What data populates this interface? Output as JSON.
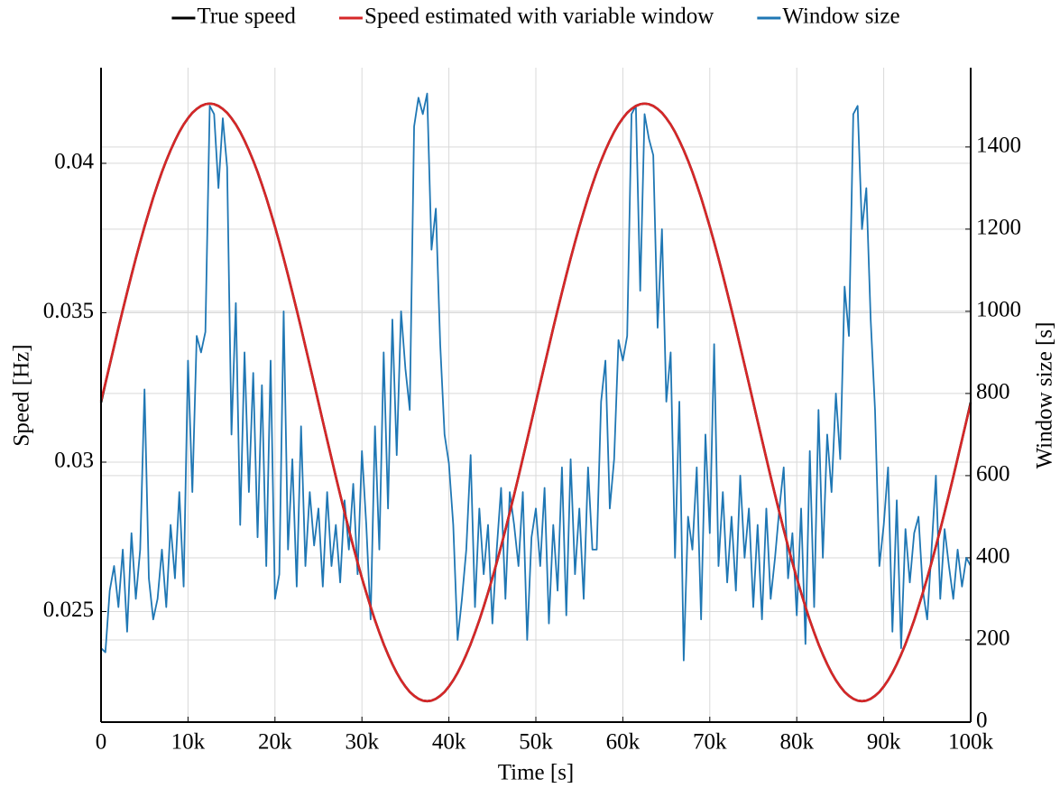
{
  "chart_data": {
    "type": "line",
    "xlabel": "Time [s]",
    "ylabel": "Speed [Hz]",
    "y2label": "Window size [s]",
    "xlim": [
      0,
      100000
    ],
    "ylim": [
      0.0213,
      0.0432
    ],
    "y2lim": [
      0,
      1593
    ],
    "xticks": [
      0,
      {
        "value": 10000,
        "label": "10k"
      },
      {
        "value": 20000,
        "label": "20k"
      },
      {
        "value": 30000,
        "label": "30k"
      },
      {
        "value": 40000,
        "label": "40k"
      },
      {
        "value": 50000,
        "label": "50k"
      },
      {
        "value": 60000,
        "label": "60k"
      },
      {
        "value": 70000,
        "label": "70k"
      },
      {
        "value": 80000,
        "label": "80k"
      },
      {
        "value": 90000,
        "label": "90k"
      },
      {
        "value": 100000,
        "label": "100k"
      }
    ],
    "yticks": [
      0.025,
      0.03,
      0.035,
      0.04
    ],
    "y2ticks": [
      0,
      200,
      400,
      600,
      800,
      1000,
      1200,
      1400
    ],
    "grid": true,
    "legend": "top",
    "y2label_color": "#3b4a6b",
    "x": [
      0,
      500,
      1000,
      1500,
      2000,
      2500,
      3000,
      3500,
      4000,
      4500,
      5000,
      5500,
      6000,
      6500,
      7000,
      7500,
      8000,
      8500,
      9000,
      9500,
      10000,
      10500,
      11000,
      11500,
      12000,
      12500,
      13000,
      13500,
      14000,
      14500,
      15000,
      15500,
      16000,
      16500,
      17000,
      17500,
      18000,
      18500,
      19000,
      19500,
      20000,
      20500,
      21000,
      21500,
      22000,
      22500,
      23000,
      23500,
      24000,
      24500,
      25000,
      25500,
      26000,
      26500,
      27000,
      27500,
      28000,
      28500,
      29000,
      29500,
      30000,
      30500,
      31000,
      31500,
      32000,
      32500,
      33000,
      33500,
      34000,
      34500,
      35000,
      35500,
      36000,
      36500,
      37000,
      37500,
      38000,
      38500,
      39000,
      39500,
      40000,
      40500,
      41000,
      41500,
      42000,
      42500,
      43000,
      43500,
      44000,
      44500,
      45000,
      45500,
      46000,
      46500,
      47000,
      47500,
      48000,
      48500,
      49000,
      49500,
      50000,
      50500,
      51000,
      51500,
      52000,
      52500,
      53000,
      53500,
      54000,
      54500,
      55000,
      55500,
      56000,
      56500,
      57000,
      57500,
      58000,
      58500,
      59000,
      59500,
      60000,
      60500,
      61000,
      61500,
      62000,
      62500,
      63000,
      63500,
      64000,
      64500,
      65000,
      65500,
      66000,
      66500,
      67000,
      67500,
      68000,
      68500,
      69000,
      69500,
      70000,
      70500,
      71000,
      71500,
      72000,
      72500,
      73000,
      73500,
      74000,
      74500,
      75000,
      75500,
      76000,
      76500,
      77000,
      77500,
      78000,
      78500,
      79000,
      79500,
      80000,
      80500,
      81000,
      81500,
      82000,
      82500,
      83000,
      83500,
      84000,
      84500,
      85000,
      85500,
      86000,
      86500,
      87000,
      87500,
      88000,
      88500,
      89000,
      89500,
      90000,
      90500,
      91000,
      91500,
      92000,
      92500,
      93000,
      93500,
      94000,
      94500,
      95000,
      95500,
      96000,
      96500,
      97000,
      97500,
      98000,
      98500,
      99000,
      99500,
      100000
    ],
    "series": [
      {
        "name": "True speed",
        "color": "#000000",
        "values": [
          0.032,
          0.03263,
          0.03325,
          0.03387,
          0.03449,
          0.03509,
          0.03568,
          0.03626,
          0.03682,
          0.03736,
          0.03788,
          0.03837,
          0.03885,
          0.03929,
          0.03971,
          0.04009,
          0.04044,
          0.04076,
          0.04105,
          0.0413,
          0.04151,
          0.04169,
          0.04182,
          0.04192,
          0.04198,
          0.042,
          0.04198,
          0.04192,
          0.04182,
          0.04169,
          0.04151,
          0.0413,
          0.04105,
          0.04076,
          0.04044,
          0.04009,
          0.03971,
          0.03929,
          0.03885,
          0.03837,
          0.03788,
          0.03736,
          0.03682,
          0.03626,
          0.03568,
          0.03509,
          0.03449,
          0.03387,
          0.03325,
          0.03263,
          0.032,
          0.03137,
          0.03075,
          0.03013,
          0.02951,
          0.02891,
          0.02832,
          0.02774,
          0.02718,
          0.02664,
          0.02612,
          0.02563,
          0.02516,
          0.02471,
          0.0243,
          0.02391,
          0.02356,
          0.02324,
          0.02295,
          0.0227,
          0.02249,
          0.02231,
          0.02218,
          0.02208,
          0.02202,
          0.022,
          0.02202,
          0.02208,
          0.02218,
          0.02231,
          0.02249,
          0.0227,
          0.02295,
          0.02324,
          0.02356,
          0.02391,
          0.0243,
          0.02471,
          0.02516,
          0.02563,
          0.02612,
          0.02664,
          0.02718,
          0.02774,
          0.02832,
          0.02891,
          0.02951,
          0.03013,
          0.03075,
          0.03137,
          0.032,
          0.03263,
          0.03325,
          0.03387,
          0.03449,
          0.03509,
          0.03568,
          0.03626,
          0.03682,
          0.03736,
          0.03788,
          0.03837,
          0.03885,
          0.03929,
          0.03971,
          0.04009,
          0.04044,
          0.04076,
          0.04105,
          0.0413,
          0.04151,
          0.04169,
          0.04182,
          0.04192,
          0.04198,
          0.042,
          0.04198,
          0.04192,
          0.04182,
          0.04169,
          0.04151,
          0.0413,
          0.04105,
          0.04076,
          0.04044,
          0.04009,
          0.03971,
          0.03929,
          0.03885,
          0.03837,
          0.03788,
          0.03736,
          0.03682,
          0.03626,
          0.03568,
          0.03509,
          0.03449,
          0.03387,
          0.03325,
          0.03263,
          0.032,
          0.03137,
          0.03075,
          0.03013,
          0.02951,
          0.02891,
          0.02832,
          0.02774,
          0.02718,
          0.02664,
          0.02612,
          0.02563,
          0.02516,
          0.02471,
          0.0243,
          0.02391,
          0.02356,
          0.02324,
          0.02295,
          0.0227,
          0.02249,
          0.02231,
          0.02218,
          0.02208,
          0.02202,
          0.022,
          0.02202,
          0.02208,
          0.02218,
          0.02231,
          0.02249,
          0.0227,
          0.02295,
          0.02324,
          0.02356,
          0.02391,
          0.0243,
          0.02471,
          0.02516,
          0.02563,
          0.02612,
          0.02664,
          0.02718,
          0.02774,
          0.02832,
          0.02891,
          0.02951,
          0.03013,
          0.03075,
          0.03137,
          0.032
        ]
      },
      {
        "name": "Speed estimated with variable window",
        "color": "#d62728",
        "values": [
          0.03205,
          0.03264,
          0.03326,
          0.03388,
          0.03449,
          0.03509,
          0.03568,
          0.03625,
          0.03682,
          0.03736,
          0.03788,
          0.03837,
          0.03885,
          0.03929,
          0.03971,
          0.04009,
          0.04044,
          0.04076,
          0.04105,
          0.0413,
          0.04151,
          0.04169,
          0.04182,
          0.04192,
          0.04198,
          0.042,
          0.04198,
          0.04192,
          0.04182,
          0.04169,
          0.04151,
          0.0413,
          0.04105,
          0.04076,
          0.04044,
          0.04009,
          0.03971,
          0.03929,
          0.03885,
          0.03837,
          0.03788,
          0.03736,
          0.03682,
          0.03626,
          0.03568,
          0.03509,
          0.03449,
          0.03387,
          0.03325,
          0.03263,
          0.032,
          0.03137,
          0.03075,
          0.03013,
          0.02951,
          0.02891,
          0.02832,
          0.02774,
          0.02718,
          0.02664,
          0.02612,
          0.02563,
          0.02516,
          0.02471,
          0.0243,
          0.02391,
          0.02356,
          0.02324,
          0.02295,
          0.0227,
          0.02249,
          0.02231,
          0.02218,
          0.02208,
          0.02202,
          0.022,
          0.02202,
          0.02208,
          0.02218,
          0.02231,
          0.02249,
          0.0227,
          0.02295,
          0.02324,
          0.02356,
          0.02391,
          0.0243,
          0.02471,
          0.02516,
          0.02563,
          0.02612,
          0.02664,
          0.02718,
          0.02774,
          0.02832,
          0.02891,
          0.02951,
          0.03013,
          0.03075,
          0.03137,
          0.032,
          0.03263,
          0.03325,
          0.03387,
          0.03449,
          0.03509,
          0.03568,
          0.03626,
          0.03682,
          0.03736,
          0.03788,
          0.03837,
          0.03885,
          0.03929,
          0.03971,
          0.04009,
          0.04044,
          0.04076,
          0.04105,
          0.0413,
          0.04151,
          0.04169,
          0.04182,
          0.04192,
          0.04198,
          0.042,
          0.04198,
          0.04192,
          0.04182,
          0.04169,
          0.04151,
          0.0413,
          0.04105,
          0.04076,
          0.04044,
          0.04009,
          0.03971,
          0.03929,
          0.03885,
          0.03837,
          0.03788,
          0.03736,
          0.03682,
          0.03626,
          0.03568,
          0.03509,
          0.03449,
          0.03387,
          0.03325,
          0.03263,
          0.032,
          0.03137,
          0.03075,
          0.03013,
          0.02951,
          0.02891,
          0.02832,
          0.02774,
          0.02718,
          0.02664,
          0.02612,
          0.02563,
          0.02516,
          0.02471,
          0.0243,
          0.02391,
          0.02356,
          0.02324,
          0.02295,
          0.0227,
          0.02249,
          0.02231,
          0.02218,
          0.02208,
          0.02202,
          0.022,
          0.02202,
          0.02208,
          0.02218,
          0.02231,
          0.02249,
          0.0227,
          0.02295,
          0.02324,
          0.02356,
          0.02391,
          0.0243,
          0.02471,
          0.02516,
          0.02563,
          0.02612,
          0.02664,
          0.02718,
          0.02774,
          0.02832,
          0.02891,
          0.02951,
          0.03013,
          0.03075,
          0.03137,
          0.03195
        ]
      },
      {
        "name": "Window size",
        "color": "#1f77b4",
        "axis": "y2",
        "values": [
          180,
          170,
          320,
          380,
          280,
          420,
          220,
          460,
          300,
          420,
          810,
          350,
          250,
          300,
          420,
          280,
          480,
          350,
          560,
          330,
          880,
          560,
          940,
          900,
          950,
          1500,
          1480,
          1300,
          1470,
          1350,
          700,
          1020,
          480,
          900,
          560,
          850,
          450,
          820,
          380,
          880,
          300,
          360,
          1000,
          420,
          640,
          330,
          720,
          380,
          560,
          430,
          520,
          330,
          560,
          380,
          480,
          340,
          540,
          420,
          580,
          360,
          660,
          480,
          250,
          720,
          420,
          900,
          520,
          980,
          650,
          1000,
          860,
          760,
          1450,
          1520,
          1480,
          1530,
          1150,
          1250,
          920,
          700,
          630,
          480,
          200,
          300,
          420,
          650,
          280,
          520,
          360,
          480,
          240,
          420,
          570,
          300,
          560,
          480,
          380,
          560,
          200,
          450,
          520,
          380,
          570,
          240,
          480,
          320,
          620,
          260,
          640,
          360,
          520,
          300,
          620,
          420,
          420,
          780,
          880,
          520,
          640,
          930,
          880,
          940,
          1480,
          1500,
          1050,
          1480,
          1420,
          1380,
          960,
          1200,
          780,
          900,
          400,
          780,
          150,
          500,
          420,
          620,
          250,
          700,
          460,
          920,
          380,
          560,
          340,
          500,
          320,
          600,
          400,
          520,
          280,
          480,
          250,
          520,
          300,
          400,
          520,
          620,
          350,
          460,
          260,
          520,
          190,
          660,
          280,
          760,
          400,
          700,
          560,
          800,
          640,
          1060,
          940,
          1480,
          1500,
          1200,
          1300,
          980,
          760,
          380,
          480,
          620,
          220,
          540,
          180,
          470,
          340,
          460,
          500,
          320,
          250,
          420,
          600,
          300,
          470,
          380,
          300,
          420,
          330,
          400,
          380
        ]
      }
    ]
  }
}
